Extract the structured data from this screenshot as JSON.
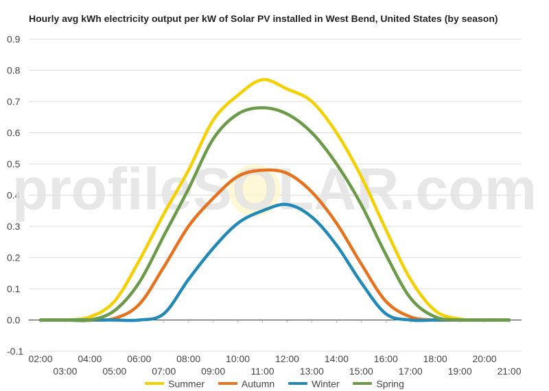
{
  "chart_data": {
    "type": "line",
    "title": "Hourly avg kWh electricity output per kW of Solar PV installed in West Bend, United States (by season)",
    "xlabel": "",
    "ylabel": "",
    "categories": [
      "02:00",
      "03:00",
      "04:00",
      "05:00",
      "06:00",
      "07:00",
      "08:00",
      "09:00",
      "10:00",
      "11:00",
      "12:00",
      "13:00",
      "14:00",
      "15:00",
      "16:00",
      "17:00",
      "18:00",
      "19:00",
      "20:00",
      "21:00"
    ],
    "ylim": [
      -0.1,
      0.9
    ],
    "y_ticks": [
      "-0.1",
      "0.0",
      "0.1",
      "0.2",
      "0.3",
      "0.4",
      "0.5",
      "0.6",
      "0.7",
      "0.8",
      "0.9"
    ],
    "grid": true,
    "legend_position": "bottom",
    "series": [
      {
        "name": "Summer",
        "color": "#f5d000",
        "values": [
          0,
          0,
          0.01,
          0.06,
          0.19,
          0.34,
          0.48,
          0.64,
          0.72,
          0.77,
          0.74,
          0.7,
          0.6,
          0.46,
          0.29,
          0.13,
          0.03,
          0.003,
          0,
          0
        ]
      },
      {
        "name": "Autumn",
        "color": "#e6711e",
        "values": [
          0,
          0,
          0,
          0.005,
          0.05,
          0.17,
          0.3,
          0.39,
          0.46,
          0.48,
          0.47,
          0.41,
          0.31,
          0.18,
          0.06,
          0.01,
          0,
          0,
          0,
          0
        ]
      },
      {
        "name": "Winter",
        "color": "#2089b8",
        "values": [
          0,
          0,
          0,
          0,
          0,
          0.02,
          0.13,
          0.23,
          0.31,
          0.35,
          0.37,
          0.33,
          0.24,
          0.12,
          0.02,
          0,
          0,
          0,
          0,
          0
        ]
      },
      {
        "name": "Spring",
        "color": "#6b9a48",
        "values": [
          0,
          0,
          0,
          0.03,
          0.12,
          0.27,
          0.42,
          0.58,
          0.66,
          0.68,
          0.66,
          0.6,
          0.5,
          0.37,
          0.21,
          0.07,
          0.01,
          0,
          0,
          0
        ]
      }
    ],
    "watermark": "profileSOLAR.com"
  }
}
